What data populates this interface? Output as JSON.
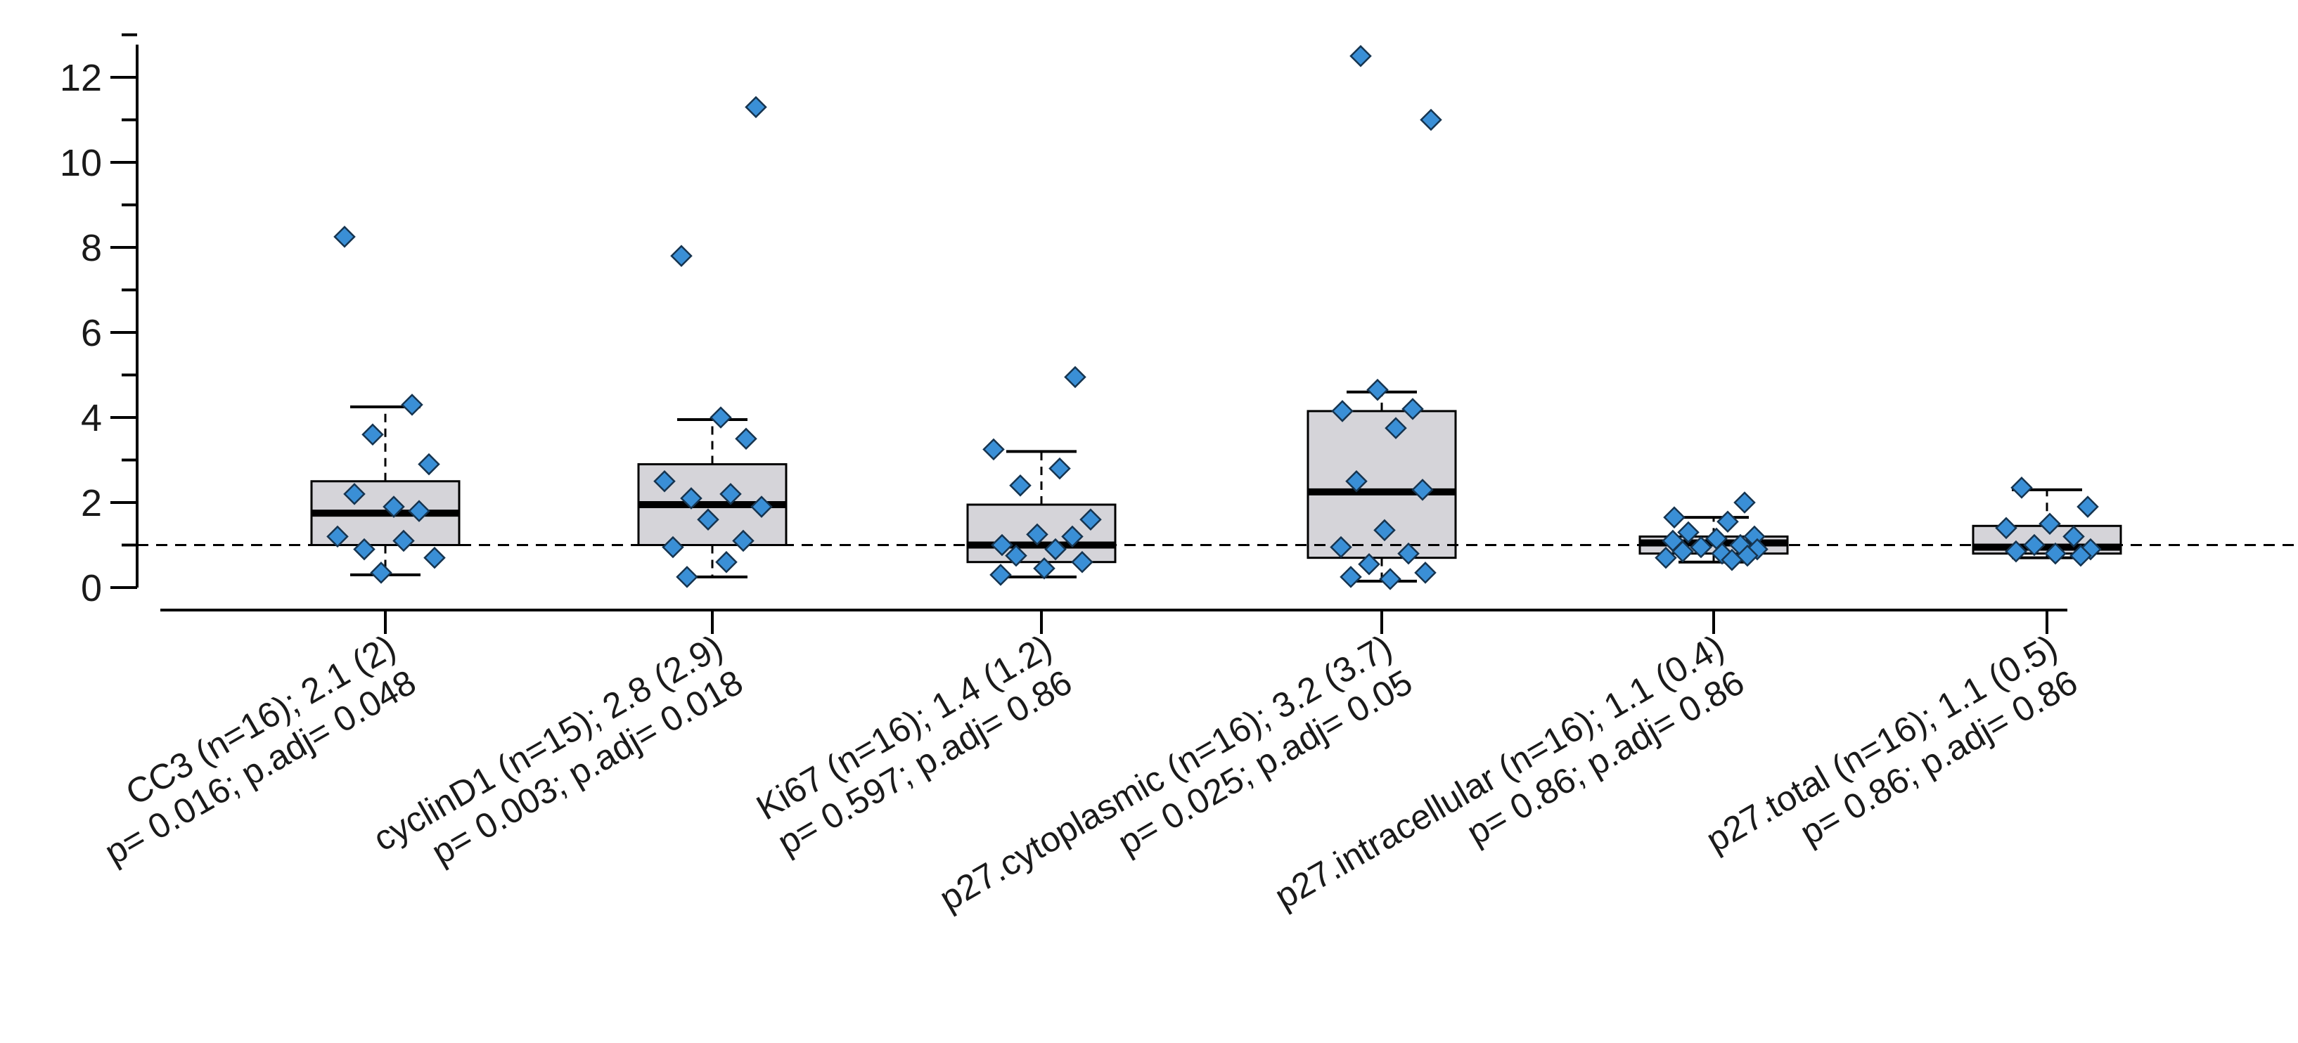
{
  "chart_data": {
    "type": "box",
    "title": "",
    "xlabel": "",
    "ylabel": "",
    "ylim": [
      0,
      13
    ],
    "yticks": [
      0,
      2,
      4,
      6,
      8,
      10,
      12
    ],
    "reference_line": 1,
    "colors": {
      "box_fill": "#d5d4d9",
      "point": "#3a8fd6",
      "point_edge": "#16344f",
      "axis": "#000000"
    },
    "categories": [
      {
        "label_line1": "CC3 (n=16); 2.1 (2)",
        "label_line2": "p= 0.016; p.adj= 0.048",
        "q1": 1.0,
        "median": 1.75,
        "q3": 2.5,
        "whisker_low": 0.3,
        "whisker_high": 4.25,
        "points": [
          8.25,
          4.3,
          3.6,
          2.9,
          2.2,
          1.9,
          1.8,
          1.2,
          1.1,
          0.9,
          0.7,
          0.35
        ]
      },
      {
        "label_line1": "cyclinD1 (n=15); 2.8 (2.9)",
        "label_line2": "p= 0.003; p.adj= 0.018",
        "q1": 1.0,
        "median": 1.95,
        "q3": 2.9,
        "whisker_low": 0.25,
        "whisker_high": 3.95,
        "points": [
          11.3,
          7.8,
          4.0,
          3.5,
          2.5,
          2.2,
          2.1,
          1.9,
          1.6,
          1.1,
          0.95,
          0.6,
          0.25
        ]
      },
      {
        "label_line1": "Ki67 (n=16); 1.4 (1.2)",
        "label_line2": "p= 0.597; p.adj= 0.86",
        "q1": 0.6,
        "median": 1.0,
        "q3": 1.95,
        "whisker_low": 0.25,
        "whisker_high": 3.2,
        "points": [
          4.95,
          3.25,
          2.8,
          2.4,
          1.6,
          1.25,
          1.2,
          1.0,
          0.9,
          0.75,
          0.6,
          0.45,
          0.3
        ]
      },
      {
        "label_line1": "p27.cytoplasmic (n=16); 3.2 (3.7)",
        "label_line2": "p= 0.025; p.adj= 0.05",
        "q1": 0.7,
        "median": 2.25,
        "q3": 4.15,
        "whisker_low": 0.15,
        "whisker_high": 4.6,
        "points": [
          12.5,
          11.0,
          4.65,
          4.2,
          4.15,
          3.75,
          2.5,
          2.3,
          1.35,
          0.95,
          0.8,
          0.55,
          0.35,
          0.25,
          0.2
        ]
      },
      {
        "label_line1": "p27.intracellular (n=16); 1.1 (0.4)",
        "label_line2": "p= 0.86; p.adj= 0.86",
        "q1": 0.8,
        "median": 1.05,
        "q3": 1.2,
        "whisker_low": 0.6,
        "whisker_high": 1.65,
        "points": [
          2.0,
          1.65,
          1.55,
          1.3,
          1.2,
          1.15,
          1.1,
          1.0,
          0.95,
          0.9,
          0.85,
          0.8,
          0.75,
          0.7,
          0.65
        ]
      },
      {
        "label_line1": "p27.total (n=16); 1.1 (0.5)",
        "label_line2": "p= 0.86; p.adj= 0.86",
        "q1": 0.8,
        "median": 0.95,
        "q3": 1.45,
        "whisker_low": 0.7,
        "whisker_high": 2.3,
        "points": [
          2.35,
          1.9,
          1.5,
          1.4,
          1.2,
          1.0,
          0.9,
          0.85,
          0.8,
          0.75
        ]
      }
    ]
  }
}
